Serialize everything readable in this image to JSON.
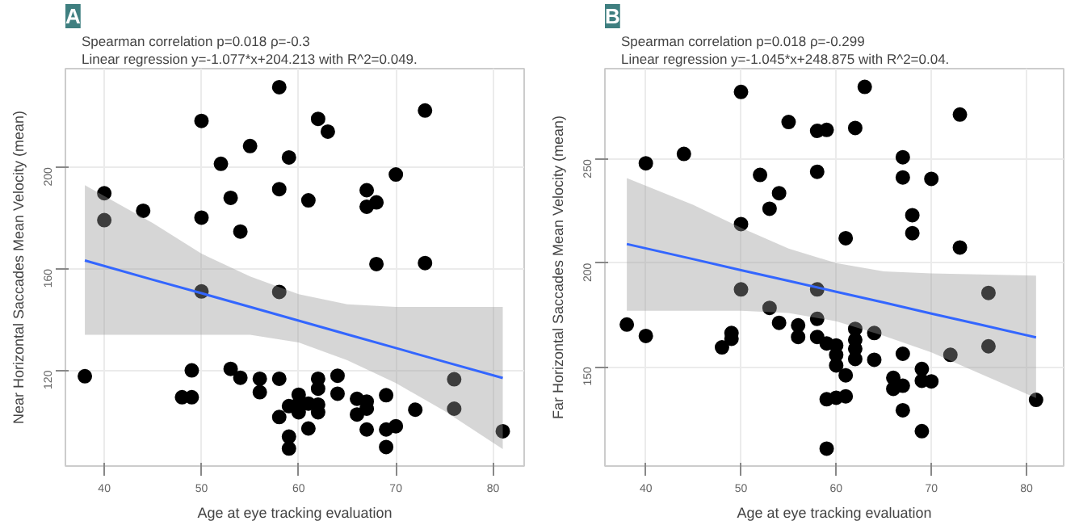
{
  "chart_data": [
    {
      "type": "scatter",
      "title": "A",
      "subtitle": "Spearman correlation p=0.018 ρ=-0.3\nLinear regression y=-1.077*x+204.213 with R^2=0.049.",
      "xlabel": "Age at eye tracking evaluation",
      "ylabel": "Near Horizontal Saccades Mean Velocity (mean)",
      "xlim": [
        36,
        83.2
      ],
      "ylim": [
        82.3,
        238.9
      ],
      "xticks": [
        40,
        50,
        60,
        70,
        80
      ],
      "yticks": [
        120,
        160,
        200
      ],
      "grid": true,
      "series": [
        {
          "color": "#000000",
          "marker": "circle",
          "x": [
            58,
            73,
            50,
            62,
            63,
            55,
            59,
            52,
            70,
            40,
            53,
            58,
            61,
            67,
            67,
            68,
            44,
            40,
            50,
            54,
            68,
            73,
            50,
            58,
            38,
            49,
            53,
            54,
            56,
            56,
            58,
            62,
            62,
            64,
            64,
            48,
            49,
            60,
            60,
            59,
            61,
            62,
            60,
            62,
            58,
            61,
            59,
            59,
            66,
            67,
            67,
            66,
            67,
            69,
            72,
            69,
            70,
            69,
            76,
            76,
            81
          ],
          "values": [
            231.6,
            222.4,
            218.3,
            219.1,
            214.1,
            208.4,
            203.9,
            201.4,
            197.2,
            189.8,
            188,
            191.4,
            187,
            191,
            184.5,
            186.2,
            182.9,
            179.2,
            180.2,
            174.7,
            161.9,
            162.3,
            151.1,
            150.9,
            117.7,
            120,
            120.6,
            117.1,
            116.7,
            111.4,
            116.7,
            116.7,
            112.8,
            117.9,
            110.8,
            109.4,
            109.4,
            110.4,
            106.9,
            105.9,
            106.9,
            106.5,
            103.5,
            103.5,
            101.6,
            97.1,
            93.9,
            89.2,
            108.8,
            107.7,
            104.9,
            102.6,
            96.7,
            110.2,
            104.5,
            96.7,
            98,
            89.8,
            116.5,
            104.9,
            96
          ]
        },
        {
          "type": "line",
          "color": "#3366ff",
          "x": [
            38,
            45,
            50,
            55,
            60,
            65,
            70,
            75,
            81
          ],
          "values": [
            163.3,
            155.7,
            150.4,
            145,
            139.6,
            134.2,
            128.8,
            123.4,
            117
          ],
          "lower": [
            134,
            134,
            134,
            134,
            131,
            124,
            115,
            104,
            89
          ],
          "upper": [
            193,
            178,
            166,
            157,
            150,
            146,
            145,
            145,
            145
          ]
        }
      ]
    },
    {
      "type": "scatter",
      "title": "B",
      "subtitle": "Spearman correlation p=0.018 ρ=-0.299\nLinear regression y=-1.045*x+248.875 with R^2=0.04.",
      "xlabel": "Age at eye tracking evaluation",
      "ylabel": "Far Horizontal Saccades Mean Velocity (mean)",
      "xlim": [
        35.7,
        83.9
      ],
      "ylim": [
        102.2,
        293.7
      ],
      "xticks": [
        40,
        50,
        60,
        70,
        80
      ],
      "yticks": [
        150,
        200,
        250
      ],
      "grid": true,
      "series": [
        {
          "color": "#000000",
          "marker": "circle",
          "x": [
            50,
            63,
            73,
            55,
            58,
            59,
            62,
            40,
            44,
            58,
            52,
            54,
            53,
            50,
            67,
            67,
            70,
            68,
            68,
            61,
            73,
            50,
            58,
            76,
            38,
            40,
            53,
            54,
            56,
            56,
            58,
            58,
            49,
            49,
            48,
            59,
            60,
            60,
            60,
            61,
            62,
            62,
            62,
            62,
            64,
            64,
            59,
            60,
            61,
            59,
            66,
            66,
            67,
            67,
            67,
            69,
            69,
            70,
            69,
            72,
            76,
            81
          ],
          "values": [
            282.5,
            284.9,
            271.6,
            268,
            263.7,
            264.2,
            265.1,
            248.1,
            252.6,
            244,
            242.5,
            233.7,
            226.2,
            218.8,
            251,
            241.3,
            240.6,
            223.1,
            214.4,
            212,
            207.5,
            187.3,
            187.3,
            185.6,
            170.4,
            164.9,
            178.4,
            171.2,
            170,
            164.4,
            173.1,
            164.4,
            166.3,
            163.5,
            159.4,
            161.3,
            160.3,
            155.8,
            150.7,
            145.9,
            168.3,
            163,
            158.7,
            153.8,
            166.3,
            153.4,
            134.4,
            135.1,
            135.8,
            110.6,
            144.7,
            139.4,
            156.3,
            140.9,
            129.1,
            149,
            143.3,
            143,
            119,
            155.8,
            159.9,
            134.1
          ]
        },
        {
          "type": "line",
          "color": "#3366ff",
          "x": [
            38,
            45,
            50,
            55,
            60,
            65,
            70,
            75,
            81
          ],
          "values": [
            209.2,
            201.9,
            196.6,
            191.4,
            186.2,
            181,
            175.7,
            170.5,
            164.2
          ],
          "lower": [
            177,
            177,
            177,
            176,
            172,
            165,
            157,
            147,
            135
          ],
          "upper": [
            241,
            228,
            217,
            207,
            200,
            196,
            195,
            194.5,
            194
          ]
        }
      ]
    }
  ]
}
